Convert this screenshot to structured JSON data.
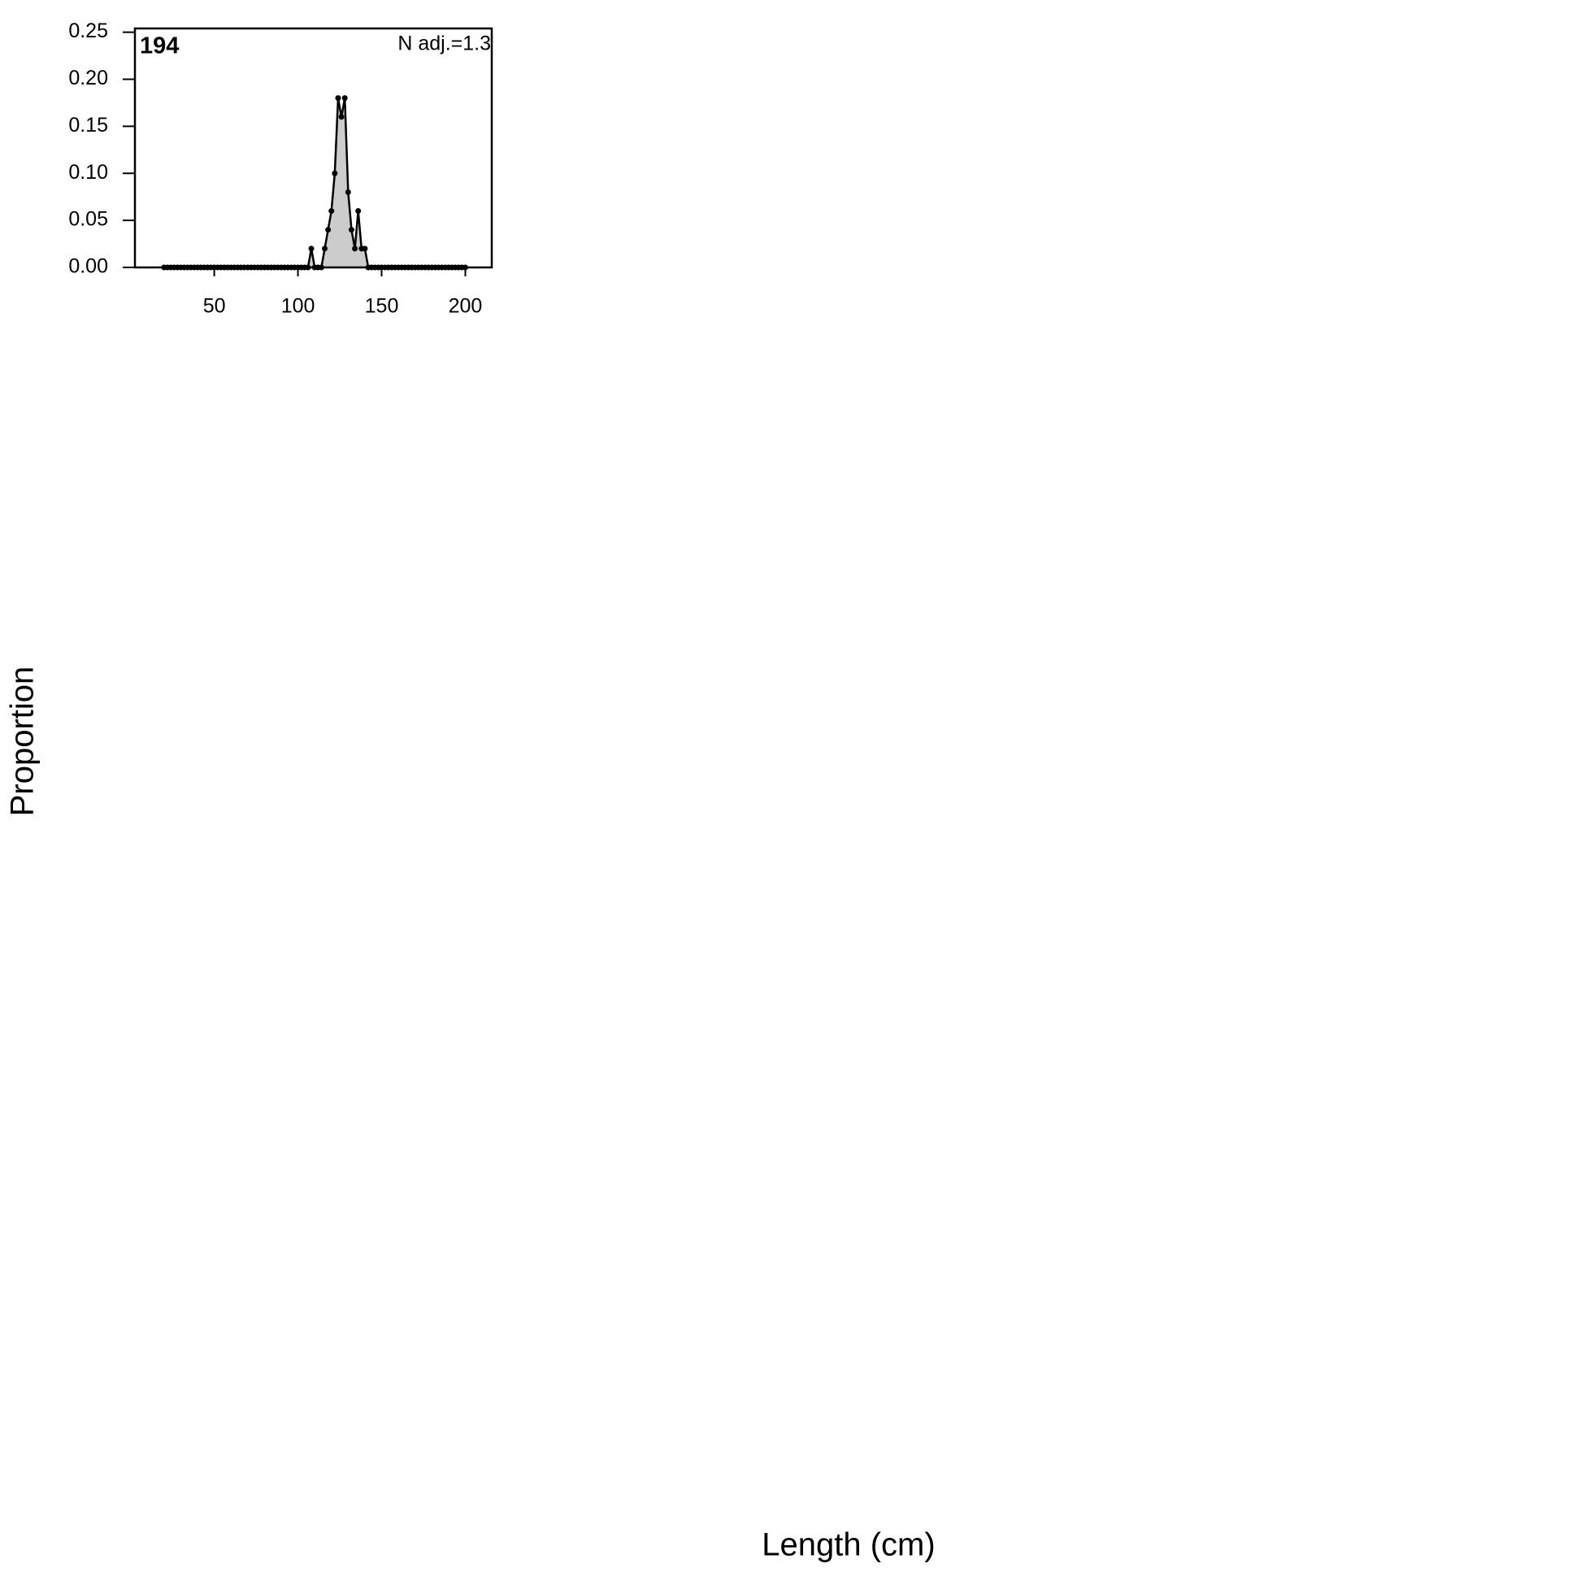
{
  "chart_data": {
    "type": "area",
    "title": "194",
    "annotation": "N adj.=1.3",
    "xlabel": "Length (cm)",
    "ylabel": "Proportion",
    "x": [
      20,
      22,
      24,
      26,
      28,
      30,
      32,
      34,
      36,
      38,
      40,
      42,
      44,
      46,
      48,
      50,
      52,
      54,
      56,
      58,
      60,
      62,
      64,
      66,
      68,
      70,
      72,
      74,
      76,
      78,
      80,
      82,
      84,
      86,
      88,
      90,
      92,
      94,
      96,
      98,
      100,
      102,
      104,
      106,
      108,
      110,
      112,
      114,
      116,
      118,
      120,
      122,
      124,
      126,
      128,
      130,
      132,
      134,
      136,
      138,
      140,
      142,
      144,
      146,
      148,
      150,
      152,
      154,
      156,
      158,
      160,
      162,
      164,
      166,
      168,
      170,
      172,
      174,
      176,
      178,
      180,
      182,
      184,
      186,
      188,
      190,
      192,
      194,
      196,
      198,
      200
    ],
    "values": [
      0,
      0,
      0,
      0,
      0,
      0,
      0,
      0,
      0,
      0,
      0,
      0,
      0,
      0,
      0,
      0,
      0,
      0,
      0,
      0,
      0,
      0,
      0,
      0,
      0,
      0,
      0,
      0,
      0,
      0,
      0,
      0,
      0,
      0,
      0,
      0,
      0,
      0,
      0,
      0,
      0,
      0,
      0,
      0,
      0.02,
      0,
      0,
      0,
      0.02,
      0.04,
      0.06,
      0.1,
      0.18,
      0.16,
      0.18,
      0.08,
      0.04,
      0.02,
      0.06,
      0.02,
      0.02,
      0,
      0,
      0,
      0,
      0,
      0,
      0,
      0,
      0,
      0,
      0,
      0,
      0,
      0,
      0,
      0,
      0,
      0,
      0,
      0,
      0,
      0,
      0,
      0,
      0,
      0,
      0,
      0,
      0,
      0
    ],
    "color": "#cccccc",
    "line_color": "#000000",
    "xlim": [
      2.6,
      215.8
    ],
    "ylim": [
      0,
      0.254
    ],
    "xticks": [
      50,
      100,
      150,
      200
    ],
    "yticks": [
      {
        "value": 0,
        "label": "0.00"
      },
      {
        "value": 0.05,
        "label": "0.05"
      },
      {
        "value": 0.1,
        "label": "0.10"
      },
      {
        "value": 0.15,
        "label": "0.15"
      },
      {
        "value": 0.2,
        "label": "0.20"
      },
      {
        "value": 0.25,
        "label": "0.25"
      }
    ]
  }
}
